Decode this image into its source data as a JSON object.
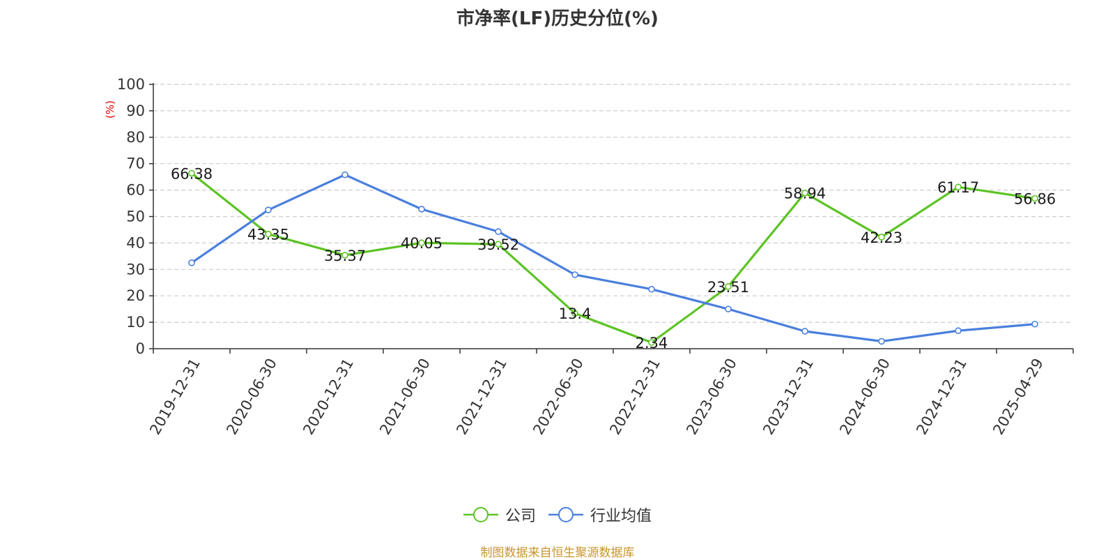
{
  "chart_data": {
    "type": "line",
    "title": "市净率(LF)历史分位(%)",
    "ylabel": "(%)",
    "ylim": [
      0,
      100
    ],
    "yticks": [
      0,
      10,
      20,
      30,
      40,
      50,
      60,
      70,
      80,
      90,
      100
    ],
    "grid": true,
    "legend_position": "bottom",
    "categories": [
      "2019-12-31",
      "2020-06-30",
      "2020-12-31",
      "2021-06-30",
      "2021-12-31",
      "2022-06-30",
      "2022-12-31",
      "2023-06-30",
      "2023-12-31",
      "2024-06-30",
      "2024-12-31",
      "2025-04-29"
    ],
    "series": [
      {
        "name": "公司",
        "color": "#5cc324",
        "labels": [
          "66.38",
          "43.35",
          "35.37",
          "40.05",
          "39.52",
          "13.4",
          "2.34",
          "23.51",
          "58.94",
          "42.23",
          "61.17",
          "56.86"
        ],
        "values": [
          66.38,
          43.35,
          35.37,
          40.05,
          39.52,
          13.4,
          2.34,
          23.51,
          58.94,
          42.23,
          61.17,
          56.86
        ]
      },
      {
        "name": "行业均值",
        "color": "#4a7fdd",
        "values": [
          32.5,
          52.5,
          65.8,
          52.8,
          44.3,
          28.0,
          22.5,
          15.0,
          6.6,
          2.8,
          6.8,
          9.3
        ]
      }
    ],
    "source": "制图数据来自恒生聚源数据库"
  }
}
